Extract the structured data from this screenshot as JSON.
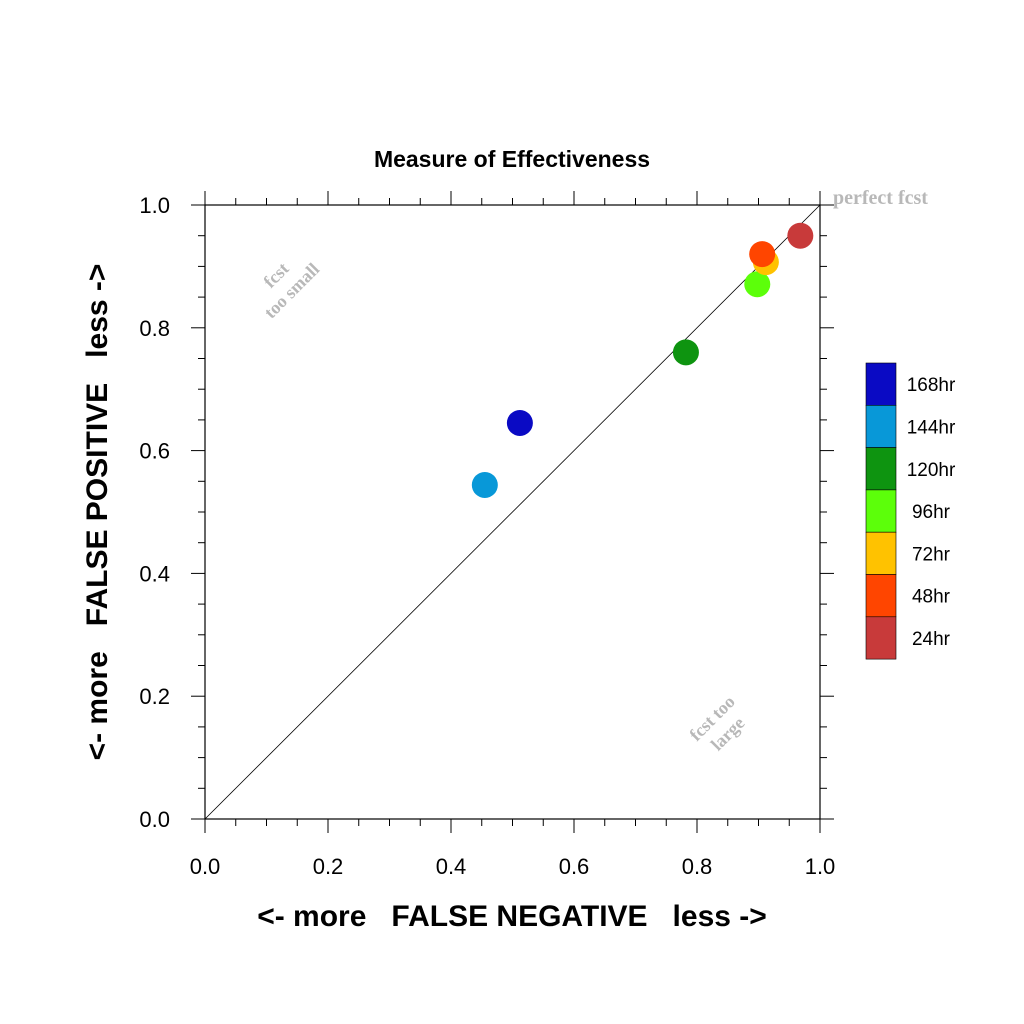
{
  "chart_data": {
    "type": "scatter",
    "title": "Measure of Effectiveness",
    "xlabel": "<- more   FALSE NEGATIVE   less ->",
    "ylabel": "<- more   FALSE POSITIVE   less ->",
    "xlim": [
      0.0,
      1.0
    ],
    "ylim": [
      0.0,
      1.0
    ],
    "x_ticks": [
      "0.0",
      "0.2",
      "0.4",
      "0.6",
      "0.8",
      "1.0"
    ],
    "y_ticks": [
      "0.0",
      "0.2",
      "0.4",
      "0.6",
      "0.8",
      "1.0"
    ],
    "grid": false,
    "reference_line": "diagonal y = x",
    "annotations": {
      "perfect": "perfect fcst",
      "too_small_line1": "fcst",
      "too_small_line2": "too small",
      "too_large_line1": "fcst too",
      "too_large_line2": "large"
    },
    "legend_position": "right",
    "series": [
      {
        "name": "168hr",
        "color": "#0a0ac4",
        "x": 0.512,
        "y": 0.645
      },
      {
        "name": "144hr",
        "color": "#0898d8",
        "x": 0.455,
        "y": 0.544
      },
      {
        "name": "120hr",
        "color": "#0e9410",
        "x": 0.782,
        "y": 0.76
      },
      {
        "name": "96hr",
        "color": "#5cff0a",
        "x": 0.898,
        "y": 0.871
      },
      {
        "name": "72hr",
        "color": "#ffc200",
        "x": 0.912,
        "y": 0.907
      },
      {
        "name": "48hr",
        "color": "#ff4500",
        "x": 0.906,
        "y": 0.92
      },
      {
        "name": "24hr",
        "color": "#c83a3a",
        "x": 0.968,
        "y": 0.95
      }
    ]
  }
}
